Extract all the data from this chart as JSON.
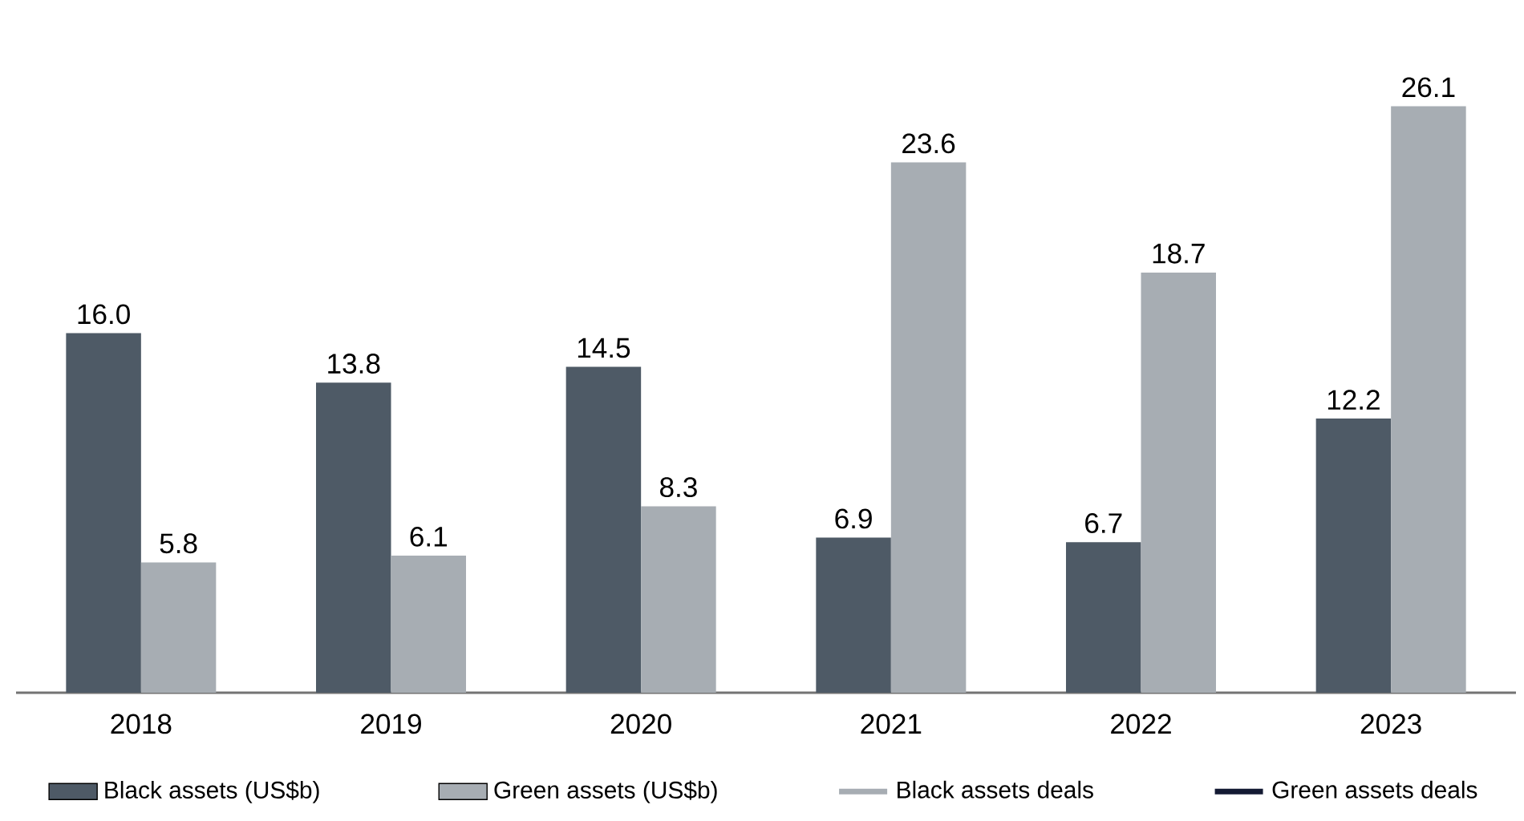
{
  "chart_data": {
    "type": "bar",
    "categories": [
      "2018",
      "2019",
      "2020",
      "2021",
      "2022",
      "2023"
    ],
    "tick_labels": "x",
    "legend": "bottom",
    "series": [
      {
        "name": "Black assets (US$b)",
        "color": "#4e5a66",
        "values": [
          16.0,
          13.8,
          14.5,
          6.9,
          6.7,
          12.2
        ],
        "value_labels": [
          "16.0",
          "13.8",
          "14.5",
          "6.9",
          "6.7",
          "12.2"
        ]
      },
      {
        "name": "Green assets (US$b)",
        "color": "#a7adb3",
        "values": [
          5.8,
          6.1,
          8.3,
          23.6,
          18.7,
          26.1
        ],
        "value_labels": [
          "5.8",
          "6.1",
          "8.3",
          "23.6",
          "18.7",
          "26.1"
        ]
      },
      {
        "name": "Black assets deals",
        "type": "line",
        "color": "#a7adb3",
        "values": [
          null,
          null,
          null,
          null,
          null,
          null
        ]
      },
      {
        "name": "Green assets deals",
        "type": "line",
        "color": "#141a33",
        "values": [
          null,
          null,
          null,
          null,
          null,
          null
        ]
      }
    ]
  }
}
